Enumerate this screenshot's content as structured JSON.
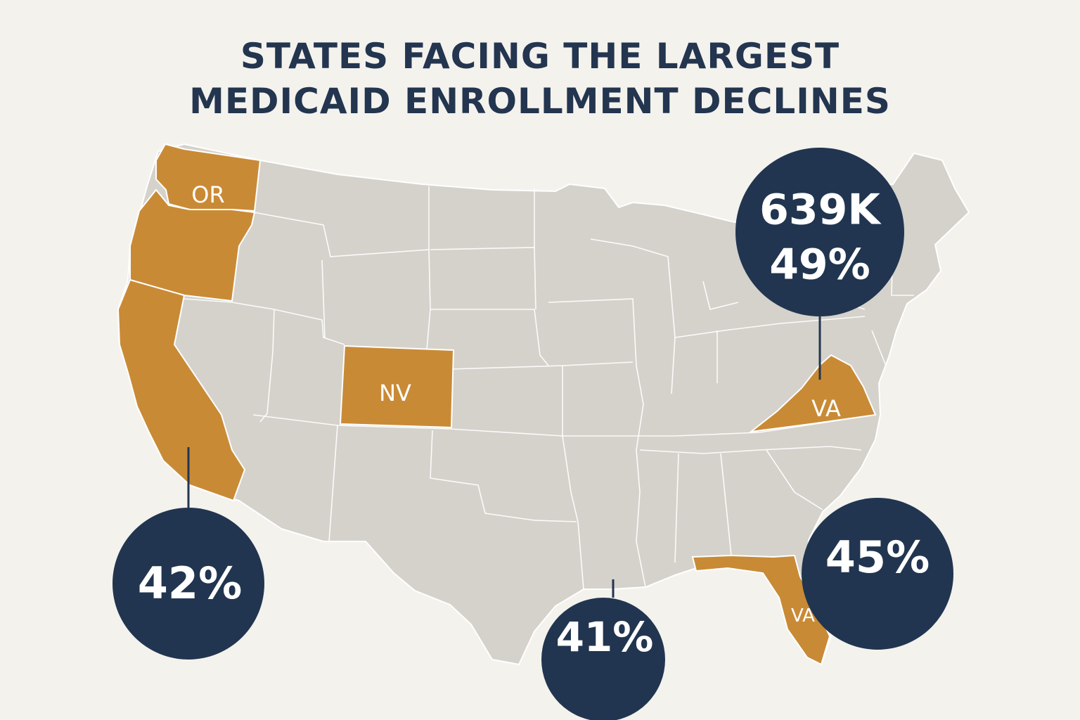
{
  "title": {
    "line1": "STATES FACING THE LARGEST",
    "line2": "MEDICAID ENROLLMENT DECLINES"
  },
  "colors": {
    "background": "#f4f2ed",
    "land": "#d4d2cb",
    "highlight": "#c98a36",
    "bubble": "#213550",
    "title": "#23354f"
  },
  "state_labels": {
    "northwest": "OR",
    "mountain": "NV",
    "mid_atlantic": "VA",
    "southeast": "VA"
  },
  "callouts": {
    "west_coast": "42%",
    "gulf": "41%",
    "southeast": "45%",
    "mid_atlantic_count": "639K",
    "mid_atlantic_pct": "49%"
  }
}
